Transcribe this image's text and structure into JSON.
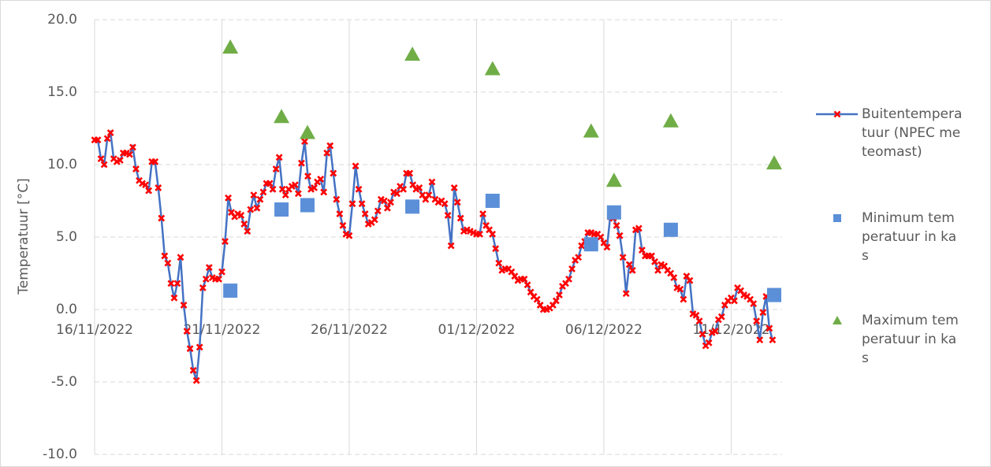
{
  "chart_data": {
    "type": "line",
    "ylabel": "Temperatuur [°C]",
    "xlim": [
      44881,
      44908
    ],
    "xticks": [
      {
        "value": 44881,
        "label": "16/11/2022"
      },
      {
        "value": 44886,
        "label": "21/11/2022"
      },
      {
        "value": 44891,
        "label": "26/11/2022"
      },
      {
        "value": 44896,
        "label": "01/12/2022"
      },
      {
        "value": 44901,
        "label": "06/12/2022"
      },
      {
        "value": 44906,
        "label": "11/12/2022"
      }
    ],
    "ylim": [
      -10,
      20
    ],
    "yticks": [
      {
        "value": -10,
        "label": "-10.0"
      },
      {
        "value": -5,
        "label": "-5.0"
      },
      {
        "value": 0,
        "label": "0.0"
      },
      {
        "value": 5,
        "label": "5.0"
      },
      {
        "value": 10,
        "label": "10.0"
      },
      {
        "value": 15,
        "label": "15.0"
      },
      {
        "value": 20,
        "label": "20.0"
      }
    ],
    "grid": true,
    "legend": "right",
    "series": [
      {
        "name": "Buitentemperatuur (NPEC meteomast)",
        "type": "line",
        "color": "#4472c4",
        "marker_color": "#ff0000",
        "x": [
          44881,
          44881.125,
          44881.25,
          44881.375,
          44881.5,
          44881.625,
          44881.75,
          44881.875,
          44882,
          44882.125,
          44882.25,
          44882.375,
          44882.5,
          44882.625,
          44882.75,
          44882.875,
          44883,
          44883.125,
          44883.25,
          44883.375,
          44883.5,
          44883.625,
          44883.75,
          44883.875,
          44884,
          44884.125,
          44884.25,
          44884.375,
          44884.5,
          44884.625,
          44884.75,
          44884.875,
          44885,
          44885.125,
          44885.25,
          44885.375,
          44885.5,
          44885.625,
          44885.75,
          44885.875,
          44886,
          44886.125,
          44886.25,
          44886.375,
          44886.5,
          44886.625,
          44886.75,
          44886.875,
          44887,
          44887.125,
          44887.25,
          44887.375,
          44887.5,
          44887.625,
          44887.75,
          44887.875,
          44888,
          44888.125,
          44888.25,
          44888.375,
          44888.5,
          44888.625,
          44888.75,
          44888.875,
          44889,
          44889.125,
          44889.25,
          44889.375,
          44889.5,
          44889.625,
          44889.75,
          44889.875,
          44890,
          44890.125,
          44890.25,
          44890.375,
          44890.5,
          44890.625,
          44890.75,
          44890.875,
          44891,
          44891.125,
          44891.25,
          44891.375,
          44891.5,
          44891.625,
          44891.75,
          44891.875,
          44892,
          44892.125,
          44892.25,
          44892.375,
          44892.5,
          44892.625,
          44892.75,
          44892.875,
          44893,
          44893.125,
          44893.25,
          44893.375,
          44893.5,
          44893.625,
          44893.75,
          44893.875,
          44894,
          44894.125,
          44894.25,
          44894.375,
          44894.5,
          44894.625,
          44894.75,
          44894.875,
          44895,
          44895.125,
          44895.25,
          44895.375,
          44895.5,
          44895.625,
          44895.75,
          44895.875,
          44896,
          44896.125,
          44896.25,
          44896.375,
          44896.5,
          44896.625,
          44896.75,
          44896.875,
          44897,
          44897.125,
          44897.25,
          44897.375,
          44897.5,
          44897.625,
          44897.75,
          44897.875,
          44898,
          44898.125,
          44898.25,
          44898.375,
          44898.5,
          44898.625,
          44898.75,
          44898.875,
          44899,
          44899.125,
          44899.25,
          44899.375,
          44899.5,
          44899.625,
          44899.75,
          44899.875,
          44900,
          44900.125,
          44900.25,
          44900.375,
          44900.5,
          44900.625,
          44900.75,
          44900.875,
          44901,
          44901.125,
          44901.25,
          44901.375,
          44901.5,
          44901.625,
          44901.75,
          44901.875,
          44902,
          44902.125,
          44902.25,
          44902.375,
          44902.5,
          44902.625,
          44902.75,
          44902.875,
          44903,
          44903.125,
          44903.25,
          44903.375,
          44903.5,
          44903.625,
          44903.75,
          44903.875,
          44904,
          44904.125,
          44904.25,
          44904.375,
          44904.5,
          44904.625,
          44904.75,
          44904.875,
          44905,
          44905.125,
          44905.25,
          44905.375,
          44905.5,
          44905.625,
          44905.75,
          44905.875,
          44906,
          44906.125,
          44906.25,
          44906.375,
          44906.5,
          44906.625,
          44906.75,
          44906.875,
          44907,
          44907.125,
          44907.25,
          44907.375,
          44907.5,
          44907.625
        ],
        "values": [
          11.7,
          11.7,
          10.4,
          10.0,
          11.8,
          12.2,
          10.4,
          10.2,
          10.3,
          10.8,
          10.8,
          10.7,
          11.2,
          9.7,
          8.9,
          8.7,
          8.6,
          8.2,
          10.2,
          10.2,
          8.4,
          6.3,
          3.7,
          3.2,
          1.8,
          0.8,
          1.8,
          3.6,
          0.3,
          -1.5,
          -2.7,
          -4.2,
          -4.9,
          -2.6,
          1.5,
          2.1,
          2.9,
          2.2,
          2.1,
          2.1,
          2.6,
          4.7,
          7.7,
          6.7,
          6.4,
          6.6,
          6.5,
          5.9,
          5.4,
          6.9,
          7.9,
          7.0,
          7.6,
          8.1,
          8.7,
          8.7,
          8.3,
          9.7,
          10.5,
          8.3,
          7.9,
          8.3,
          8.5,
          8.6,
          8.0,
          10.1,
          11.6,
          9.2,
          8.3,
          8.4,
          8.8,
          9.0,
          8.1,
          10.8,
          11.3,
          9.4,
          7.6,
          6.6,
          5.8,
          5.2,
          5.1,
          7.3,
          9.9,
          8.3,
          7.3,
          6.6,
          5.9,
          6.0,
          6.2,
          6.8,
          7.6,
          7.5,
          7.0,
          7.4,
          8.1,
          8.0,
          8.5,
          8.3,
          9.4,
          9.4,
          8.6,
          8.3,
          8.4,
          7.9,
          7.6,
          7.9,
          8.8,
          7.6,
          7.4,
          7.5,
          7.3,
          6.5,
          4.4,
          8.4,
          7.4,
          6.3,
          5.4,
          5.5,
          5.4,
          5.3,
          5.2,
          5.2,
          6.6,
          5.8,
          5.5,
          5.2,
          4.2,
          3.2,
          2.7,
          2.8,
          2.8,
          2.6,
          2.3,
          2.0,
          2.1,
          2.1,
          1.7,
          1.2,
          0.9,
          0.7,
          0.3,
          0.0,
          0.0,
          0.1,
          0.3,
          0.6,
          1.0,
          1.6,
          1.8,
          2.1,
          2.8,
          3.4,
          3.6,
          4.4,
          4.7,
          5.3,
          5.3,
          5.2,
          5.2,
          5.0,
          4.6,
          4.3,
          6.4,
          6.3,
          5.8,
          5.1,
          3.6,
          1.1,
          3.1,
          2.7,
          5.5,
          5.6,
          4.1,
          3.7,
          3.7,
          3.7,
          3.3,
          2.7,
          3.1,
          3.0,
          2.7,
          2.5,
          2.2,
          1.5,
          1.4,
          0.7,
          2.3,
          2.0,
          -0.3,
          -0.4,
          -0.8,
          -1.7,
          -2.5,
          -2.3,
          -1.6,
          -1.5,
          -0.7,
          -0.5,
          0.3,
          0.6,
          0.8,
          0.6,
          1.5,
          1.3,
          1.0,
          0.9,
          0.7,
          0.4,
          -0.8,
          -2.1,
          -0.2,
          0.9,
          -1.3,
          -2.1
        ]
      },
      {
        "name": "Minimum temperatuur in kas",
        "type": "scatter",
        "marker": "square",
        "color": "#5b8fd8",
        "x": [
          44886.33,
          44888.34,
          44889.36,
          44893.48,
          44896.63,
          44900.5,
          44901.4,
          44903.63,
          44907.69
        ],
        "values": [
          1.3,
          6.9,
          7.2,
          7.1,
          7.5,
          4.5,
          6.7,
          5.5,
          1.0
        ]
      },
      {
        "name": "Maximum temperatuur in kas",
        "type": "scatter",
        "marker": "triangle",
        "color": "#70ad47",
        "x": [
          44886.33,
          44888.34,
          44889.36,
          44893.48,
          44896.63,
          44900.5,
          44901.4,
          44903.63,
          44907.69
        ],
        "values": [
          18.1,
          13.3,
          12.2,
          17.6,
          16.6,
          12.3,
          8.9,
          13.0,
          10.1
        ]
      }
    ]
  }
}
